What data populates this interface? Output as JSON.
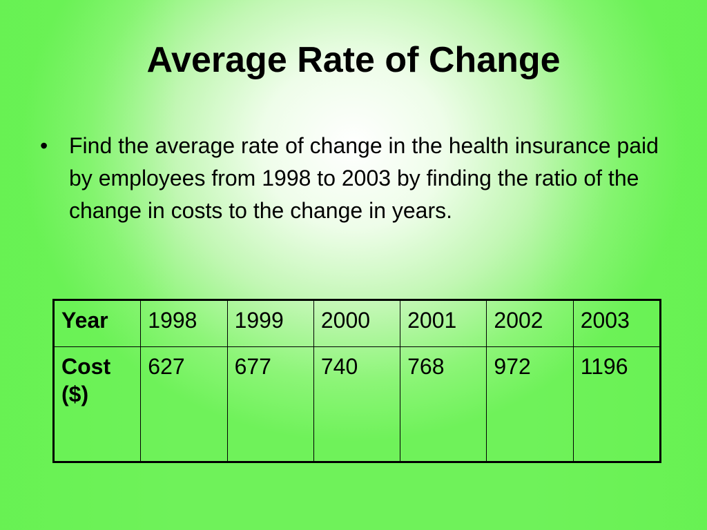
{
  "slide": {
    "title": "Average Rate of Change",
    "bullets": [
      {
        "marker": "•",
        "text": "Find the average rate of change in the health insurance paid by employees from 1998 to 2003 by finding the ratio of the change in costs to the change in years."
      }
    ],
    "table": {
      "rows": [
        {
          "header": "Year",
          "cells": [
            "1998",
            "1999",
            "2000",
            "2001",
            "2002",
            "2003"
          ]
        },
        {
          "header": "Cost ($)",
          "cells": [
            "627",
            "677",
            "740",
            "768",
            "972",
            "1196"
          ]
        }
      ]
    }
  }
}
